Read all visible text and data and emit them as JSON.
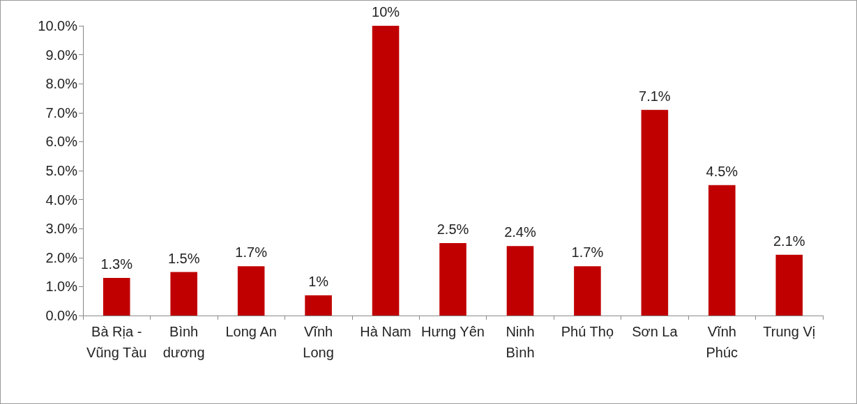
{
  "chart_data": {
    "type": "bar",
    "categories": [
      "Bà Rịa - Vũng Tàu",
      "Bình dương",
      "Long An",
      "Vĩnh Long",
      "Hà Nam",
      "Hưng Yên",
      "Ninh Bình",
      "Phú Thọ",
      "Sơn La",
      "Vĩnh Phúc",
      "Trung Vị"
    ],
    "values": [
      1.3,
      1.5,
      1.7,
      0.7,
      10,
      2.5,
      2.4,
      1.7,
      7.1,
      4.5,
      2.1
    ],
    "value_labels": [
      "1.3%",
      "1.5%",
      "1.7%",
      "1%",
      "10%",
      "2.5%",
      "2.4%",
      "1.7%",
      "7.1%",
      "4.5%",
      "2.1%"
    ],
    "color": "#c00000",
    "ylim": [
      0,
      10
    ],
    "yticks": [
      {
        "value": 0,
        "label": "0.0%"
      },
      {
        "value": 1,
        "label": "1.0%"
      },
      {
        "value": 2,
        "label": "2.0%"
      },
      {
        "value": 3,
        "label": "3.0%"
      },
      {
        "value": 4,
        "label": "4.0%"
      },
      {
        "value": 5,
        "label": "5.0%"
      },
      {
        "value": 6,
        "label": "6.0%"
      },
      {
        "value": 7,
        "label": "7.0%"
      },
      {
        "value": 8,
        "label": "8.0%"
      },
      {
        "value": 9,
        "label": "9.0%"
      },
      {
        "value": 10,
        "label": "10.0%"
      }
    ],
    "grid": false
  }
}
